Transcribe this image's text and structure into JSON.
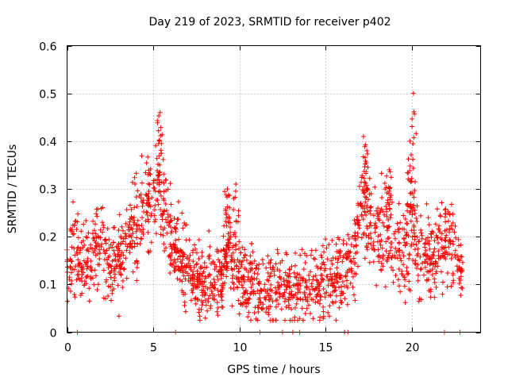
{
  "chart_data": {
    "type": "scatter",
    "title": "Day 219 of 2023, SRMTID for receiver p402",
    "xlabel": "GPS time / hours",
    "ylabel": "SRMTID / TECUs",
    "xlim": [
      0,
      24
    ],
    "ylim": [
      0,
      0.6
    ],
    "grid": true,
    "x_ticks": [
      0,
      5,
      10,
      15,
      20
    ],
    "x_tick_labels": [
      "0",
      "5",
      "10",
      "15",
      "20"
    ],
    "y_ticks": [
      0,
      0.1,
      0.2,
      0.3,
      0.4,
      0.5,
      0.6
    ],
    "y_tick_labels": [
      "0",
      "0.1",
      "0.2",
      "0.3",
      "0.4",
      "0.5",
      "0.6"
    ],
    "marker": "plus",
    "marker_color": "#ff0000",
    "series": [
      {
        "name": "SRMTID",
        "profile": [
          [
            0.0,
            0.15
          ],
          [
            0.5,
            0.17
          ],
          [
            1.0,
            0.14
          ],
          [
            1.5,
            0.17
          ],
          [
            2.0,
            0.19
          ],
          [
            2.5,
            0.13
          ],
          [
            3.0,
            0.15
          ],
          [
            3.5,
            0.19
          ],
          [
            4.0,
            0.22
          ],
          [
            4.5,
            0.25
          ],
          [
            5.0,
            0.26
          ],
          [
            5.3,
            0.31
          ],
          [
            5.6,
            0.27
          ],
          [
            6.0,
            0.22
          ],
          [
            6.3,
            0.17
          ],
          [
            7.0,
            0.13
          ],
          [
            8.0,
            0.1
          ],
          [
            9.0,
            0.11
          ],
          [
            9.3,
            0.2
          ],
          [
            9.6,
            0.14
          ],
          [
            10.0,
            0.13
          ],
          [
            10.5,
            0.1
          ],
          [
            11.0,
            0.09
          ],
          [
            12.0,
            0.09
          ],
          [
            13.0,
            0.09
          ],
          [
            14.0,
            0.1
          ],
          [
            15.0,
            0.11
          ],
          [
            16.0,
            0.12
          ],
          [
            16.5,
            0.14
          ],
          [
            17.0,
            0.25
          ],
          [
            17.5,
            0.23
          ],
          [
            18.0,
            0.2
          ],
          [
            18.5,
            0.24
          ],
          [
            19.0,
            0.17
          ],
          [
            19.5,
            0.16
          ],
          [
            20.0,
            0.22
          ],
          [
            20.3,
            0.17
          ],
          [
            21.0,
            0.15
          ],
          [
            21.5,
            0.18
          ],
          [
            22.0,
            0.2
          ],
          [
            22.5,
            0.17
          ],
          [
            23.0,
            0.12
          ]
        ],
        "spread": 0.07,
        "point_count": 1800,
        "peaks": [
          {
            "x": 5.4,
            "y": 0.46
          },
          {
            "x": 9.3,
            "y": 0.3
          },
          {
            "x": 9.8,
            "y": 0.31
          },
          {
            "x": 17.2,
            "y": 0.41
          },
          {
            "x": 17.4,
            "y": 0.38
          },
          {
            "x": 18.7,
            "y": 0.34
          },
          {
            "x": 20.1,
            "y": 0.5
          },
          {
            "x": 19.9,
            "y": 0.4
          }
        ],
        "zero_points": [
          0.6,
          6.3,
          11.2,
          12.5,
          13.1,
          13.5,
          16.1,
          16.3,
          21.9,
          22.8
        ]
      }
    ]
  }
}
